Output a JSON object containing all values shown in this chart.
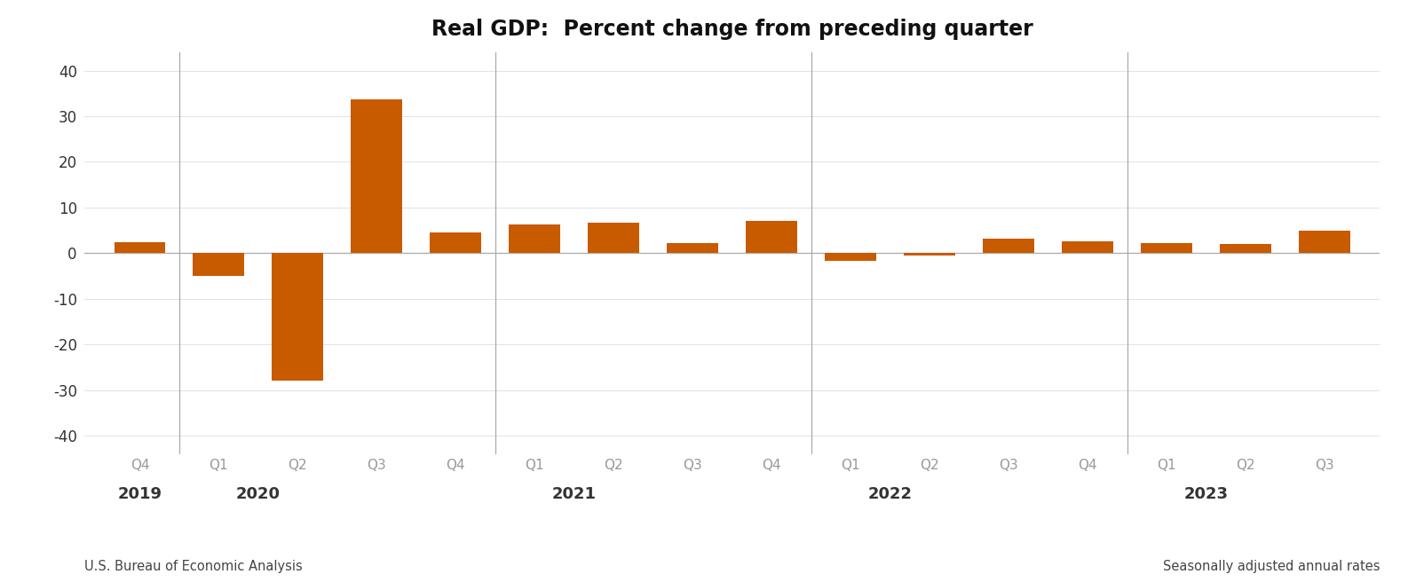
{
  "title": "Real GDP:  Percent change from preceding quarter",
  "bar_color": "#C85A00",
  "values": [
    2.4,
    -5.0,
    -28.0,
    33.8,
    4.5,
    6.3,
    6.7,
    2.3,
    7.0,
    -1.6,
    -0.6,
    3.2,
    2.6,
    2.2,
    2.0,
    4.9
  ],
  "quarters": [
    "Q4",
    "Q1",
    "Q2",
    "Q3",
    "Q4",
    "Q1",
    "Q2",
    "Q3",
    "Q4",
    "Q1",
    "Q2",
    "Q3",
    "Q4",
    "Q1",
    "Q2",
    "Q3"
  ],
  "year_labels": [
    "2019",
    "2020",
    "2021",
    "2022",
    "2023"
  ],
  "year_positions": [
    0,
    1.5,
    5.5,
    9.5,
    13.5
  ],
  "vline_positions": [
    0.5,
    4.5,
    8.5,
    12.5
  ],
  "ylim": [
    -44,
    44
  ],
  "yticks": [
    -40,
    -30,
    -20,
    -10,
    0,
    10,
    20,
    30,
    40
  ],
  "footnote_left": "U.S. Bureau of Economic Analysis",
  "footnote_right": "Seasonally adjusted annual rates",
  "background_color": "#ffffff",
  "axis_color": "#aaaaaa",
  "grid_color": "#dddddd"
}
